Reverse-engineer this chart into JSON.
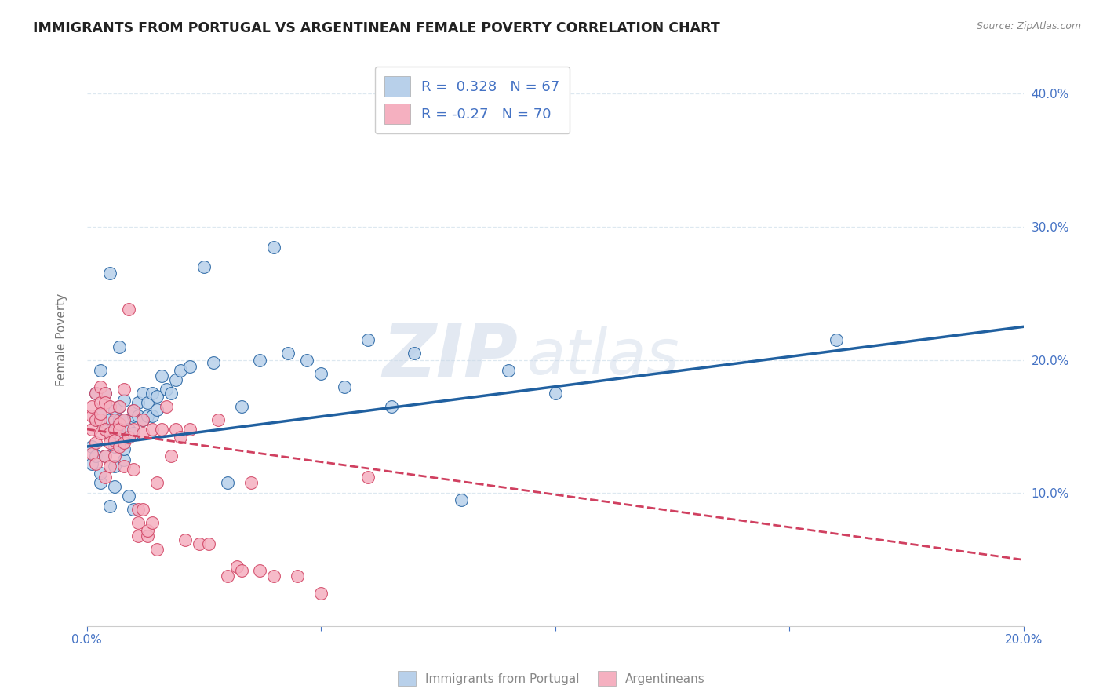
{
  "title": "IMMIGRANTS FROM PORTUGAL VS ARGENTINEAN FEMALE POVERTY CORRELATION CHART",
  "source": "Source: ZipAtlas.com",
  "ylabel": "Female Poverty",
  "y_ticks": [
    0.1,
    0.2,
    0.3,
    0.4
  ],
  "y_tick_labels": [
    "10.0%",
    "20.0%",
    "30.0%",
    "40.0%"
  ],
  "xlim": [
    0.0,
    0.2
  ],
  "ylim": [
    0.0,
    0.43
  ],
  "R_blue": 0.328,
  "N_blue": 67,
  "R_pink": -0.27,
  "N_pink": 70,
  "legend_label_blue": "Immigrants from Portugal",
  "legend_label_pink": "Argentineans",
  "blue_color": "#b8d0ea",
  "blue_line_color": "#2060a0",
  "pink_color": "#f5b0c0",
  "pink_line_color": "#d04060",
  "blue_scatter": [
    [
      0.001,
      0.122
    ],
    [
      0.001,
      0.135
    ],
    [
      0.002,
      0.155
    ],
    [
      0.002,
      0.128
    ],
    [
      0.002,
      0.175
    ],
    [
      0.003,
      0.16
    ],
    [
      0.003,
      0.108
    ],
    [
      0.003,
      0.192
    ],
    [
      0.003,
      0.115
    ],
    [
      0.004,
      0.148
    ],
    [
      0.004,
      0.175
    ],
    [
      0.004,
      0.128
    ],
    [
      0.005,
      0.155
    ],
    [
      0.005,
      0.09
    ],
    [
      0.005,
      0.265
    ],
    [
      0.005,
      0.145
    ],
    [
      0.006,
      0.135
    ],
    [
      0.006,
      0.12
    ],
    [
      0.006,
      0.162
    ],
    [
      0.006,
      0.105
    ],
    [
      0.007,
      0.145
    ],
    [
      0.007,
      0.165
    ],
    [
      0.007,
      0.21
    ],
    [
      0.007,
      0.155
    ],
    [
      0.008,
      0.125
    ],
    [
      0.008,
      0.17
    ],
    [
      0.008,
      0.155
    ],
    [
      0.008,
      0.133
    ],
    [
      0.009,
      0.148
    ],
    [
      0.009,
      0.098
    ],
    [
      0.01,
      0.158
    ],
    [
      0.01,
      0.088
    ],
    [
      0.01,
      0.145
    ],
    [
      0.01,
      0.162
    ],
    [
      0.011,
      0.168
    ],
    [
      0.011,
      0.158
    ],
    [
      0.012,
      0.175
    ],
    [
      0.012,
      0.155
    ],
    [
      0.013,
      0.168
    ],
    [
      0.013,
      0.158
    ],
    [
      0.014,
      0.175
    ],
    [
      0.014,
      0.158
    ],
    [
      0.015,
      0.163
    ],
    [
      0.015,
      0.173
    ],
    [
      0.016,
      0.188
    ],
    [
      0.017,
      0.178
    ],
    [
      0.018,
      0.175
    ],
    [
      0.019,
      0.185
    ],
    [
      0.02,
      0.192
    ],
    [
      0.022,
      0.195
    ],
    [
      0.025,
      0.27
    ],
    [
      0.027,
      0.198
    ],
    [
      0.03,
      0.108
    ],
    [
      0.033,
      0.165
    ],
    [
      0.037,
      0.2
    ],
    [
      0.04,
      0.285
    ],
    [
      0.043,
      0.205
    ],
    [
      0.047,
      0.2
    ],
    [
      0.05,
      0.19
    ],
    [
      0.055,
      0.18
    ],
    [
      0.06,
      0.215
    ],
    [
      0.065,
      0.165
    ],
    [
      0.07,
      0.205
    ],
    [
      0.08,
      0.095
    ],
    [
      0.09,
      0.192
    ],
    [
      0.1,
      0.175
    ],
    [
      0.16,
      0.215
    ]
  ],
  "pink_scatter": [
    [
      0.001,
      0.13
    ],
    [
      0.001,
      0.148
    ],
    [
      0.001,
      0.158
    ],
    [
      0.001,
      0.165
    ],
    [
      0.002,
      0.122
    ],
    [
      0.002,
      0.155
    ],
    [
      0.002,
      0.175
    ],
    [
      0.002,
      0.138
    ],
    [
      0.003,
      0.168
    ],
    [
      0.003,
      0.155
    ],
    [
      0.003,
      0.145
    ],
    [
      0.003,
      0.18
    ],
    [
      0.003,
      0.16
    ],
    [
      0.004,
      0.148
    ],
    [
      0.004,
      0.175
    ],
    [
      0.004,
      0.128
    ],
    [
      0.004,
      0.168
    ],
    [
      0.004,
      0.112
    ],
    [
      0.005,
      0.145
    ],
    [
      0.005,
      0.138
    ],
    [
      0.005,
      0.165
    ],
    [
      0.005,
      0.12
    ],
    [
      0.006,
      0.155
    ],
    [
      0.006,
      0.148
    ],
    [
      0.006,
      0.14
    ],
    [
      0.006,
      0.128
    ],
    [
      0.007,
      0.152
    ],
    [
      0.007,
      0.135
    ],
    [
      0.007,
      0.165
    ],
    [
      0.007,
      0.148
    ],
    [
      0.008,
      0.178
    ],
    [
      0.008,
      0.138
    ],
    [
      0.008,
      0.12
    ],
    [
      0.008,
      0.155
    ],
    [
      0.009,
      0.142
    ],
    [
      0.009,
      0.238
    ],
    [
      0.01,
      0.148
    ],
    [
      0.01,
      0.162
    ],
    [
      0.01,
      0.118
    ],
    [
      0.011,
      0.088
    ],
    [
      0.011,
      0.068
    ],
    [
      0.011,
      0.078
    ],
    [
      0.012,
      0.155
    ],
    [
      0.012,
      0.088
    ],
    [
      0.012,
      0.145
    ],
    [
      0.013,
      0.068
    ],
    [
      0.013,
      0.072
    ],
    [
      0.014,
      0.148
    ],
    [
      0.014,
      0.078
    ],
    [
      0.015,
      0.058
    ],
    [
      0.015,
      0.108
    ],
    [
      0.016,
      0.148
    ],
    [
      0.017,
      0.165
    ],
    [
      0.018,
      0.128
    ],
    [
      0.019,
      0.148
    ],
    [
      0.02,
      0.142
    ],
    [
      0.021,
      0.065
    ],
    [
      0.022,
      0.148
    ],
    [
      0.024,
      0.062
    ],
    [
      0.026,
      0.062
    ],
    [
      0.028,
      0.155
    ],
    [
      0.03,
      0.038
    ],
    [
      0.032,
      0.045
    ],
    [
      0.033,
      0.042
    ],
    [
      0.035,
      0.108
    ],
    [
      0.037,
      0.042
    ],
    [
      0.04,
      0.038
    ],
    [
      0.045,
      0.038
    ],
    [
      0.05,
      0.025
    ],
    [
      0.06,
      0.112
    ]
  ],
  "watermark_zip": "ZIP",
  "watermark_atlas": "atlas",
  "background_color": "#ffffff",
  "grid_color": "#dde8f0"
}
